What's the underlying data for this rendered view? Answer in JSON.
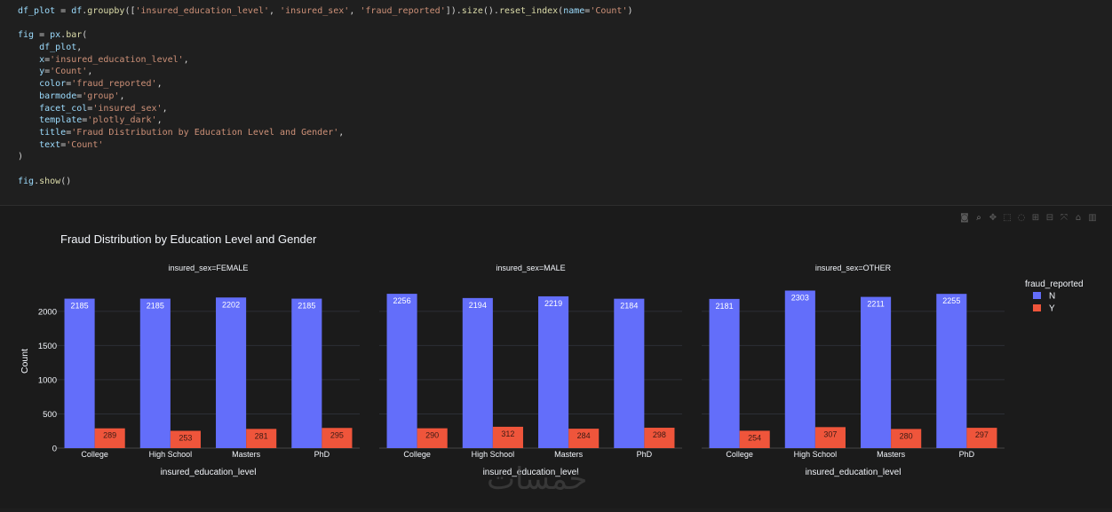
{
  "code": {
    "lines": [
      "df_plot = df.groupby(['insured_education_level', 'insured_sex', 'fraud_reported']).size().reset_index(name='Count')",
      "",
      "fig = px.bar(",
      "    df_plot,",
      "    x='insured_education_level',",
      "    y='Count',",
      "    color='fraud_reported',",
      "    barmode='group',",
      "    facet_col='insured_sex',",
      "    template='plotly_dark',",
      "    title='Fraud Distribution by Education Level and Gender',",
      "    text='Count'",
      ")",
      "",
      "fig.show()"
    ]
  },
  "modebar": {
    "icons": [
      "camera-icon",
      "zoom-icon",
      "pan-icon",
      "box-select-icon",
      "lasso-icon",
      "zoom-in-icon",
      "zoom-out-icon",
      "autoscale-icon",
      "home-icon",
      "plotly-logo-icon"
    ],
    "glyphs": [
      "◙",
      "⌕",
      "✥",
      "⬚",
      "◌",
      "⊞",
      "⊟",
      "⤧",
      "⌂",
      "▥"
    ]
  },
  "watermark": "خمسات",
  "chart_data": {
    "type": "bar",
    "title": "Fraud Distribution by Education Level and Gender",
    "xlabel": "insured_education_level",
    "ylabel": "Count",
    "ylim": [
      0,
      2400
    ],
    "yticks": [
      0,
      500,
      1000,
      1500,
      2000
    ],
    "categories": [
      "College",
      "High School",
      "Masters",
      "PhD"
    ],
    "legend": {
      "title": "fraud_reported",
      "placement": "top-right"
    },
    "colors": {
      "N": "#636efa",
      "Y": "#ef553b"
    },
    "facets": [
      {
        "label": "insured_sex=FEMALE",
        "series": [
          {
            "name": "N",
            "values": [
              2185,
              2185,
              2202,
              2185
            ]
          },
          {
            "name": "Y",
            "values": [
              289,
              253,
              281,
              295
            ]
          }
        ]
      },
      {
        "label": "insured_sex=MALE",
        "series": [
          {
            "name": "N",
            "values": [
              2256,
              2194,
              2219,
              2184
            ]
          },
          {
            "name": "Y",
            "values": [
              290,
              312,
              284,
              298
            ]
          }
        ]
      },
      {
        "label": "insured_sex=OTHER",
        "series": [
          {
            "name": "N",
            "values": [
              2181,
              2303,
              2211,
              2255
            ]
          },
          {
            "name": "Y",
            "values": [
              254,
              307,
              280,
              297
            ]
          }
        ]
      }
    ]
  }
}
